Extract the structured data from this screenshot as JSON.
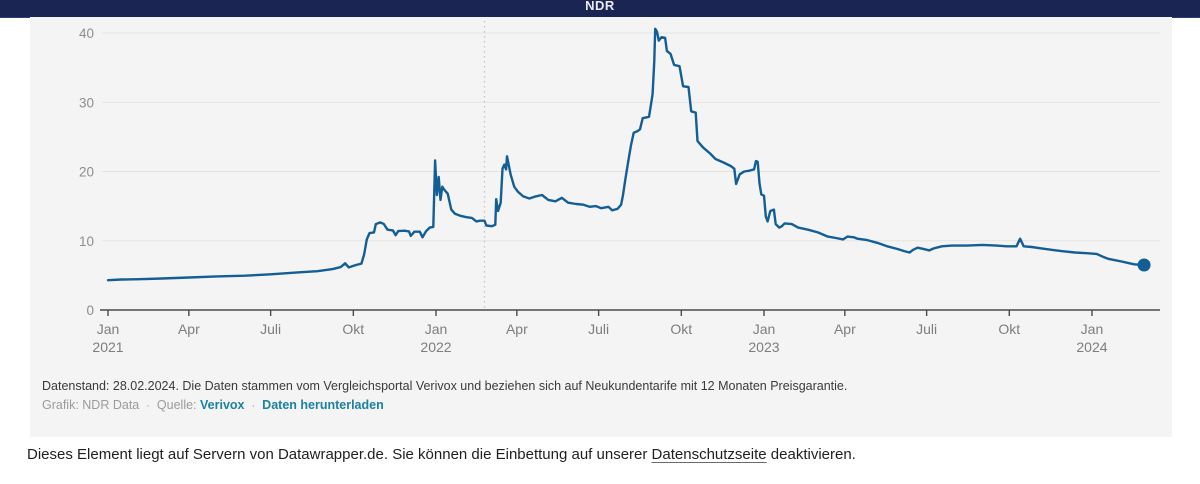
{
  "header": {
    "title": "NDR"
  },
  "colors": {
    "header_bg": "#1b2553",
    "panel_bg": "#f4f4f4",
    "line": "#145e96",
    "grid": "#e3e3e3",
    "axis": "#4a4a4a",
    "axis_label": "#8d8d8d",
    "event_line": "#c4c4c4",
    "link": "#1d81a2"
  },
  "chart_data": {
    "type": "line",
    "title": "NDR",
    "xlabel": "",
    "ylabel": "",
    "ylim": [
      0,
      40
    ],
    "yticks": [
      0,
      10,
      20,
      30,
      40
    ],
    "grid": "horizontal",
    "legend": "none",
    "x_start": "2021-01-01",
    "x_end": "2024-02-28",
    "event_line_date": "2022-02-24",
    "xticks": [
      {
        "date": "2021-01-01",
        "label": "Jan",
        "year": "2021"
      },
      {
        "date": "2021-04-01",
        "label": "Apr",
        "year": ""
      },
      {
        "date": "2021-07-01",
        "label": "Juli",
        "year": ""
      },
      {
        "date": "2021-10-01",
        "label": "Okt",
        "year": ""
      },
      {
        "date": "2022-01-01",
        "label": "Jan",
        "year": "2022"
      },
      {
        "date": "2022-04-01",
        "label": "Apr",
        "year": ""
      },
      {
        "date": "2022-07-01",
        "label": "Juli",
        "year": ""
      },
      {
        "date": "2022-10-01",
        "label": "Okt",
        "year": ""
      },
      {
        "date": "2023-01-01",
        "label": "Jan",
        "year": "2023"
      },
      {
        "date": "2023-04-01",
        "label": "Apr",
        "year": ""
      },
      {
        "date": "2023-07-01",
        "label": "Juli",
        "year": ""
      },
      {
        "date": "2023-10-01",
        "label": "Okt",
        "year": ""
      },
      {
        "date": "2024-01-01",
        "label": "Jan",
        "year": "2024"
      }
    ],
    "series": [
      {
        "points": [
          [
            "2021-01-01",
            4.3
          ],
          [
            "2021-01-16",
            4.4
          ],
          [
            "2021-02-05",
            4.45
          ],
          [
            "2021-03-02",
            4.55
          ],
          [
            "2021-04-01",
            4.7
          ],
          [
            "2021-05-02",
            4.85
          ],
          [
            "2021-06-02",
            4.95
          ],
          [
            "2021-07-01",
            5.15
          ],
          [
            "2021-08-02",
            5.45
          ],
          [
            "2021-08-22",
            5.6
          ],
          [
            "2021-09-08",
            5.9
          ],
          [
            "2021-09-17",
            6.2
          ],
          [
            "2021-09-22",
            6.75
          ],
          [
            "2021-09-26",
            6.15
          ],
          [
            "2021-10-04",
            6.5
          ],
          [
            "2021-10-10",
            6.7
          ],
          [
            "2021-10-13",
            8.0
          ],
          [
            "2021-10-16",
            10.2
          ],
          [
            "2021-10-19",
            11.1
          ],
          [
            "2021-10-24",
            11.2
          ],
          [
            "2021-10-26",
            12.4
          ],
          [
            "2021-10-31",
            12.65
          ],
          [
            "2021-11-04",
            12.4
          ],
          [
            "2021-11-08",
            11.6
          ],
          [
            "2021-11-14",
            11.5
          ],
          [
            "2021-11-17",
            10.8
          ],
          [
            "2021-11-20",
            11.4
          ],
          [
            "2021-11-27",
            11.45
          ],
          [
            "2021-12-02",
            11.35
          ],
          [
            "2021-12-04",
            10.7
          ],
          [
            "2021-12-08",
            11.3
          ],
          [
            "2021-12-14",
            11.3
          ],
          [
            "2021-12-17",
            10.5
          ],
          [
            "2021-12-21",
            11.4
          ],
          [
            "2021-12-25",
            11.9
          ],
          [
            "2021-12-29",
            12.0
          ],
          [
            "2021-12-31",
            21.6
          ],
          [
            "2022-01-02",
            16.6
          ],
          [
            "2022-01-04",
            19.2
          ],
          [
            "2022-01-06",
            15.9
          ],
          [
            "2022-01-08",
            17.8
          ],
          [
            "2022-01-10",
            17.4
          ],
          [
            "2022-01-14",
            16.8
          ],
          [
            "2022-01-18",
            14.5
          ],
          [
            "2022-01-22",
            13.9
          ],
          [
            "2022-01-28",
            13.6
          ],
          [
            "2022-02-04",
            13.4
          ],
          [
            "2022-02-10",
            13.3
          ],
          [
            "2022-02-15",
            12.8
          ],
          [
            "2022-02-19",
            12.9
          ],
          [
            "2022-02-24",
            12.9
          ],
          [
            "2022-02-26",
            12.2
          ],
          [
            "2022-03-04",
            12.1
          ],
          [
            "2022-03-08",
            12.3
          ],
          [
            "2022-03-09",
            16.0
          ],
          [
            "2022-03-11",
            14.3
          ],
          [
            "2022-03-14",
            15.5
          ],
          [
            "2022-03-16",
            20.4
          ],
          [
            "2022-03-18",
            21.0
          ],
          [
            "2022-03-20",
            20.3
          ],
          [
            "2022-03-21",
            22.2
          ],
          [
            "2022-03-25",
            19.6
          ],
          [
            "2022-03-29",
            17.8
          ],
          [
            "2022-04-02",
            17.1
          ],
          [
            "2022-04-08",
            16.4
          ],
          [
            "2022-04-15",
            16.1
          ],
          [
            "2022-04-22",
            16.4
          ],
          [
            "2022-04-29",
            16.6
          ],
          [
            "2022-05-06",
            15.9
          ],
          [
            "2022-05-14",
            15.7
          ],
          [
            "2022-05-21",
            16.2
          ],
          [
            "2022-05-28",
            15.5
          ],
          [
            "2022-06-06",
            15.3
          ],
          [
            "2022-06-14",
            15.2
          ],
          [
            "2022-06-21",
            14.9
          ],
          [
            "2022-06-28",
            15.0
          ],
          [
            "2022-07-04",
            14.7
          ],
          [
            "2022-07-12",
            14.9
          ],
          [
            "2022-07-16",
            14.4
          ],
          [
            "2022-07-22",
            14.6
          ],
          [
            "2022-07-26",
            15.2
          ],
          [
            "2022-07-28",
            16.5
          ],
          [
            "2022-07-31",
            19.1
          ],
          [
            "2022-08-03",
            21.5
          ],
          [
            "2022-08-06",
            23.8
          ],
          [
            "2022-08-09",
            25.6
          ],
          [
            "2022-08-13",
            25.8
          ],
          [
            "2022-08-16",
            26.1
          ],
          [
            "2022-08-19",
            27.7
          ],
          [
            "2022-08-26",
            27.9
          ],
          [
            "2022-08-28",
            29.5
          ],
          [
            "2022-08-30",
            31.2
          ],
          [
            "2022-09-01",
            36.0
          ],
          [
            "2022-09-02",
            40.6
          ],
          [
            "2022-09-04",
            40.2
          ],
          [
            "2022-09-06",
            38.9
          ],
          [
            "2022-09-09",
            39.4
          ],
          [
            "2022-09-13",
            39.3
          ],
          [
            "2022-09-15",
            37.4
          ],
          [
            "2022-09-19",
            37.0
          ],
          [
            "2022-09-23",
            35.4
          ],
          [
            "2022-09-29",
            35.2
          ],
          [
            "2022-10-03",
            32.3
          ],
          [
            "2022-10-09",
            32.2
          ],
          [
            "2022-10-12",
            28.7
          ],
          [
            "2022-10-17",
            28.5
          ],
          [
            "2022-10-19",
            24.4
          ],
          [
            "2022-10-25",
            23.5
          ],
          [
            "2022-11-02",
            22.6
          ],
          [
            "2022-11-08",
            21.8
          ],
          [
            "2022-11-17",
            21.3
          ],
          [
            "2022-11-25",
            20.8
          ],
          [
            "2022-11-29",
            20.4
          ],
          [
            "2022-12-01",
            18.2
          ],
          [
            "2022-12-05",
            19.6
          ],
          [
            "2022-12-10",
            20.0
          ],
          [
            "2022-12-15",
            20.1
          ],
          [
            "2022-12-21",
            20.3
          ],
          [
            "2022-12-23",
            21.5
          ],
          [
            "2022-12-25",
            21.4
          ],
          [
            "2022-12-27",
            18.3
          ],
          [
            "2022-12-29",
            16.7
          ],
          [
            "2023-01-01",
            16.5
          ],
          [
            "2023-01-03",
            13.5
          ],
          [
            "2023-01-05",
            12.8
          ],
          [
            "2023-01-08",
            14.3
          ],
          [
            "2023-01-12",
            14.5
          ],
          [
            "2023-01-14",
            12.4
          ],
          [
            "2023-01-18",
            11.9
          ],
          [
            "2023-01-21",
            12.1
          ],
          [
            "2023-01-24",
            12.5
          ],
          [
            "2023-02-01",
            12.4
          ],
          [
            "2023-02-08",
            11.9
          ],
          [
            "2023-02-19",
            11.6
          ],
          [
            "2023-03-02",
            11.2
          ],
          [
            "2023-03-13",
            10.6
          ],
          [
            "2023-03-22",
            10.4
          ],
          [
            "2023-03-30",
            10.2
          ],
          [
            "2023-04-04",
            10.6
          ],
          [
            "2023-04-11",
            10.5
          ],
          [
            "2023-04-15",
            10.3
          ],
          [
            "2023-04-26",
            10.1
          ],
          [
            "2023-05-07",
            9.7
          ],
          [
            "2023-05-18",
            9.2
          ],
          [
            "2023-05-30",
            8.8
          ],
          [
            "2023-06-06",
            8.5
          ],
          [
            "2023-06-12",
            8.3
          ],
          [
            "2023-06-16",
            8.7
          ],
          [
            "2023-06-21",
            9.0
          ],
          [
            "2023-06-28",
            8.8
          ],
          [
            "2023-07-04",
            8.6
          ],
          [
            "2023-07-09",
            8.9
          ],
          [
            "2023-07-18",
            9.2
          ],
          [
            "2023-07-29",
            9.3
          ],
          [
            "2023-08-15",
            9.3
          ],
          [
            "2023-09-01",
            9.4
          ],
          [
            "2023-09-17",
            9.3
          ],
          [
            "2023-09-28",
            9.2
          ],
          [
            "2023-10-09",
            9.2
          ],
          [
            "2023-10-13",
            10.3
          ],
          [
            "2023-10-17",
            9.2
          ],
          [
            "2023-10-26",
            9.1
          ],
          [
            "2023-11-06",
            8.9
          ],
          [
            "2023-11-17",
            8.7
          ],
          [
            "2023-11-28",
            8.5
          ],
          [
            "2023-12-13",
            8.3
          ],
          [
            "2023-12-26",
            8.2
          ],
          [
            "2024-01-06",
            8.1
          ],
          [
            "2024-01-13",
            7.7
          ],
          [
            "2024-01-19",
            7.4
          ],
          [
            "2024-01-26",
            7.2
          ],
          [
            "2024-02-03",
            7.0
          ],
          [
            "2024-02-10",
            6.8
          ],
          [
            "2024-02-17",
            6.6
          ],
          [
            "2024-02-28",
            6.5
          ]
        ],
        "end_marker": true
      }
    ]
  },
  "footer": {
    "note": "Datenstand: 28.02.2024. Die Daten stammen vom Vergleichsportal Verivox und beziehen sich auf Neukundentarife mit 12 Monaten Preisgarantie.",
    "credit": "Grafik: NDR Data",
    "separator": "·",
    "source_label": "Quelle:",
    "source_link": "Verivox",
    "download_link": "Daten herunterladen"
  },
  "notice": {
    "text_before": "Dieses Element liegt auf Servern von Datawrapper.de. Sie können die Einbettung auf unserer ",
    "link": "Datenschutzseite",
    "text_after": " deaktivieren."
  }
}
